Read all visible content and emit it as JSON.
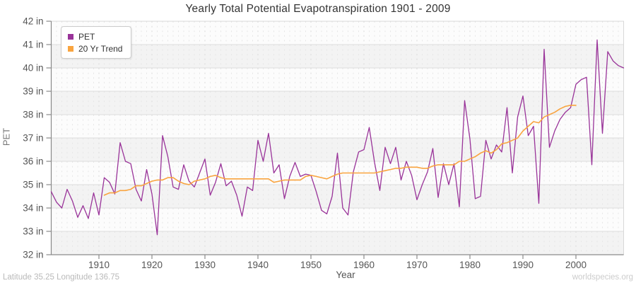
{
  "title": "Yearly Total Potential Evapotranspiration 1901 - 2009",
  "legend": {
    "position": "top-left",
    "items": [
      {
        "label": "PET",
        "color": "#993399"
      },
      {
        "label": "20 Yr Trend",
        "color": "#F9A43F"
      }
    ]
  },
  "footer": {
    "left": "Latitude 35.25 Longitude 136.75",
    "right": "worldspecies.org"
  },
  "chart_data": {
    "type": "line",
    "title": "Yearly Total Potential Evapotranspiration 1901 - 2009",
    "xlabel": "Year",
    "ylabel": "PET",
    "y_unit": "in",
    "ylim": [
      32,
      42
    ],
    "xlim": [
      1901,
      2009
    ],
    "y_ticks": [
      32,
      33,
      34,
      35,
      36,
      37,
      38,
      39,
      40,
      41,
      42
    ],
    "y_tick_label_suffix": " in",
    "x_ticks": [
      1910,
      1920,
      1930,
      1940,
      1950,
      1960,
      1970,
      1980,
      1990,
      2000
    ],
    "grid": "vertical dashed line per year, solid horizontal line per inch, alternating shaded bands",
    "legend_position": "top-left",
    "series": [
      {
        "name": "PET",
        "color": "#993399",
        "years": [
          1901,
          1902,
          1903,
          1904,
          1905,
          1906,
          1907,
          1908,
          1909,
          1910,
          1911,
          1912,
          1913,
          1914,
          1915,
          1916,
          1917,
          1918,
          1919,
          1920,
          1921,
          1922,
          1923,
          1924,
          1925,
          1926,
          1927,
          1928,
          1929,
          1930,
          1931,
          1932,
          1933,
          1934,
          1935,
          1936,
          1937,
          1938,
          1939,
          1940,
          1941,
          1942,
          1943,
          1944,
          1945,
          1946,
          1947,
          1948,
          1949,
          1950,
          1951,
          1952,
          1953,
          1954,
          1955,
          1956,
          1957,
          1958,
          1959,
          1960,
          1961,
          1962,
          1963,
          1964,
          1965,
          1966,
          1967,
          1968,
          1969,
          1970,
          1971,
          1972,
          1973,
          1974,
          1975,
          1976,
          1977,
          1978,
          1979,
          1980,
          1981,
          1982,
          1983,
          1984,
          1985,
          1986,
          1987,
          1988,
          1989,
          1990,
          1991,
          1992,
          1993,
          1994,
          1995,
          1996,
          1997,
          1998,
          1999,
          2000,
          2001,
          2002,
          2003,
          2004,
          2005,
          2006,
          2007,
          2008,
          2009
        ],
        "values": [
          34.7,
          34.25,
          34.0,
          34.8,
          34.3,
          33.6,
          34.1,
          33.55,
          34.65,
          33.7,
          35.3,
          35.1,
          34.6,
          36.8,
          36.0,
          35.9,
          34.8,
          34.3,
          35.65,
          34.6,
          32.85,
          37.1,
          36.2,
          34.9,
          34.8,
          35.85,
          35.15,
          34.9,
          35.5,
          36.1,
          34.55,
          35.1,
          35.9,
          34.95,
          35.15,
          34.55,
          33.65,
          34.9,
          34.75,
          36.9,
          36.0,
          37.2,
          35.5,
          35.85,
          34.4,
          35.35,
          35.95,
          35.35,
          35.45,
          35.4,
          34.7,
          33.9,
          33.75,
          34.5,
          36.35,
          34.0,
          33.7,
          35.55,
          36.4,
          36.5,
          37.45,
          35.95,
          34.75,
          36.6,
          35.9,
          36.6,
          35.2,
          36.0,
          35.4,
          34.35,
          35.0,
          35.55,
          36.55,
          34.45,
          35.9,
          35.0,
          35.9,
          34.05,
          38.6,
          36.95,
          34.4,
          34.5,
          36.9,
          36.1,
          36.7,
          36.4,
          38.3,
          35.5,
          37.9,
          38.8,
          37.1,
          37.5,
          34.2,
          40.8,
          36.6,
          37.3,
          37.8,
          38.1,
          38.3,
          39.3,
          39.5,
          39.6,
          35.85,
          41.2,
          37.2,
          40.7,
          40.3,
          40.1,
          40.0
        ]
      },
      {
        "name": "20 Yr Trend",
        "color": "#F9A43F",
        "years": [
          1911,
          1912,
          1913,
          1914,
          1915,
          1916,
          1917,
          1918,
          1919,
          1920,
          1921,
          1922,
          1923,
          1924,
          1925,
          1926,
          1927,
          1928,
          1929,
          1930,
          1931,
          1932,
          1933,
          1934,
          1935,
          1936,
          1937,
          1938,
          1939,
          1940,
          1941,
          1942,
          1943,
          1944,
          1945,
          1946,
          1947,
          1948,
          1949,
          1950,
          1951,
          1952,
          1953,
          1954,
          1955,
          1956,
          1957,
          1958,
          1959,
          1960,
          1961,
          1962,
          1963,
          1964,
          1965,
          1966,
          1967,
          1968,
          1969,
          1970,
          1971,
          1972,
          1973,
          1974,
          1975,
          1976,
          1977,
          1978,
          1979,
          1980,
          1981,
          1982,
          1983,
          1984,
          1985,
          1986,
          1987,
          1988,
          1989,
          1990,
          1991,
          1992,
          1993,
          1994,
          1995,
          1996,
          1997,
          1998,
          1999,
          2000
        ],
        "values": [
          34.55,
          34.65,
          34.65,
          34.75,
          34.75,
          34.8,
          34.95,
          34.95,
          35.05,
          35.15,
          35.2,
          35.2,
          35.3,
          35.3,
          35.15,
          35.05,
          35.0,
          35.15,
          35.2,
          35.25,
          35.35,
          35.4,
          35.3,
          35.25,
          35.25,
          35.25,
          35.25,
          35.25,
          35.25,
          35.25,
          35.25,
          35.25,
          35.1,
          35.15,
          35.2,
          35.2,
          35.2,
          35.2,
          35.35,
          35.4,
          35.35,
          35.3,
          35.25,
          35.35,
          35.45,
          35.5,
          35.5,
          35.5,
          35.5,
          35.5,
          35.5,
          35.5,
          35.55,
          35.6,
          35.65,
          35.7,
          35.7,
          35.75,
          35.75,
          35.75,
          35.7,
          35.7,
          35.8,
          35.85,
          35.85,
          35.85,
          35.85,
          36.0,
          36.0,
          36.1,
          36.2,
          36.35,
          36.45,
          36.35,
          36.5,
          36.75,
          36.8,
          36.9,
          37.0,
          37.3,
          37.5,
          37.7,
          37.65,
          37.9,
          38.0,
          38.1,
          38.25,
          38.35,
          38.4,
          38.4
        ]
      }
    ],
    "style": {
      "band_fill": "#f3f3f3",
      "plot_background": "#fcfcfc",
      "major_h_grid_color": "#dcdcdc",
      "minor_v_grid_color": "#e6e6e6",
      "decade_v_grid_color": "#d9d9d9",
      "axis_color": "#8a8a8a",
      "tick_label_color": "#555555"
    }
  }
}
